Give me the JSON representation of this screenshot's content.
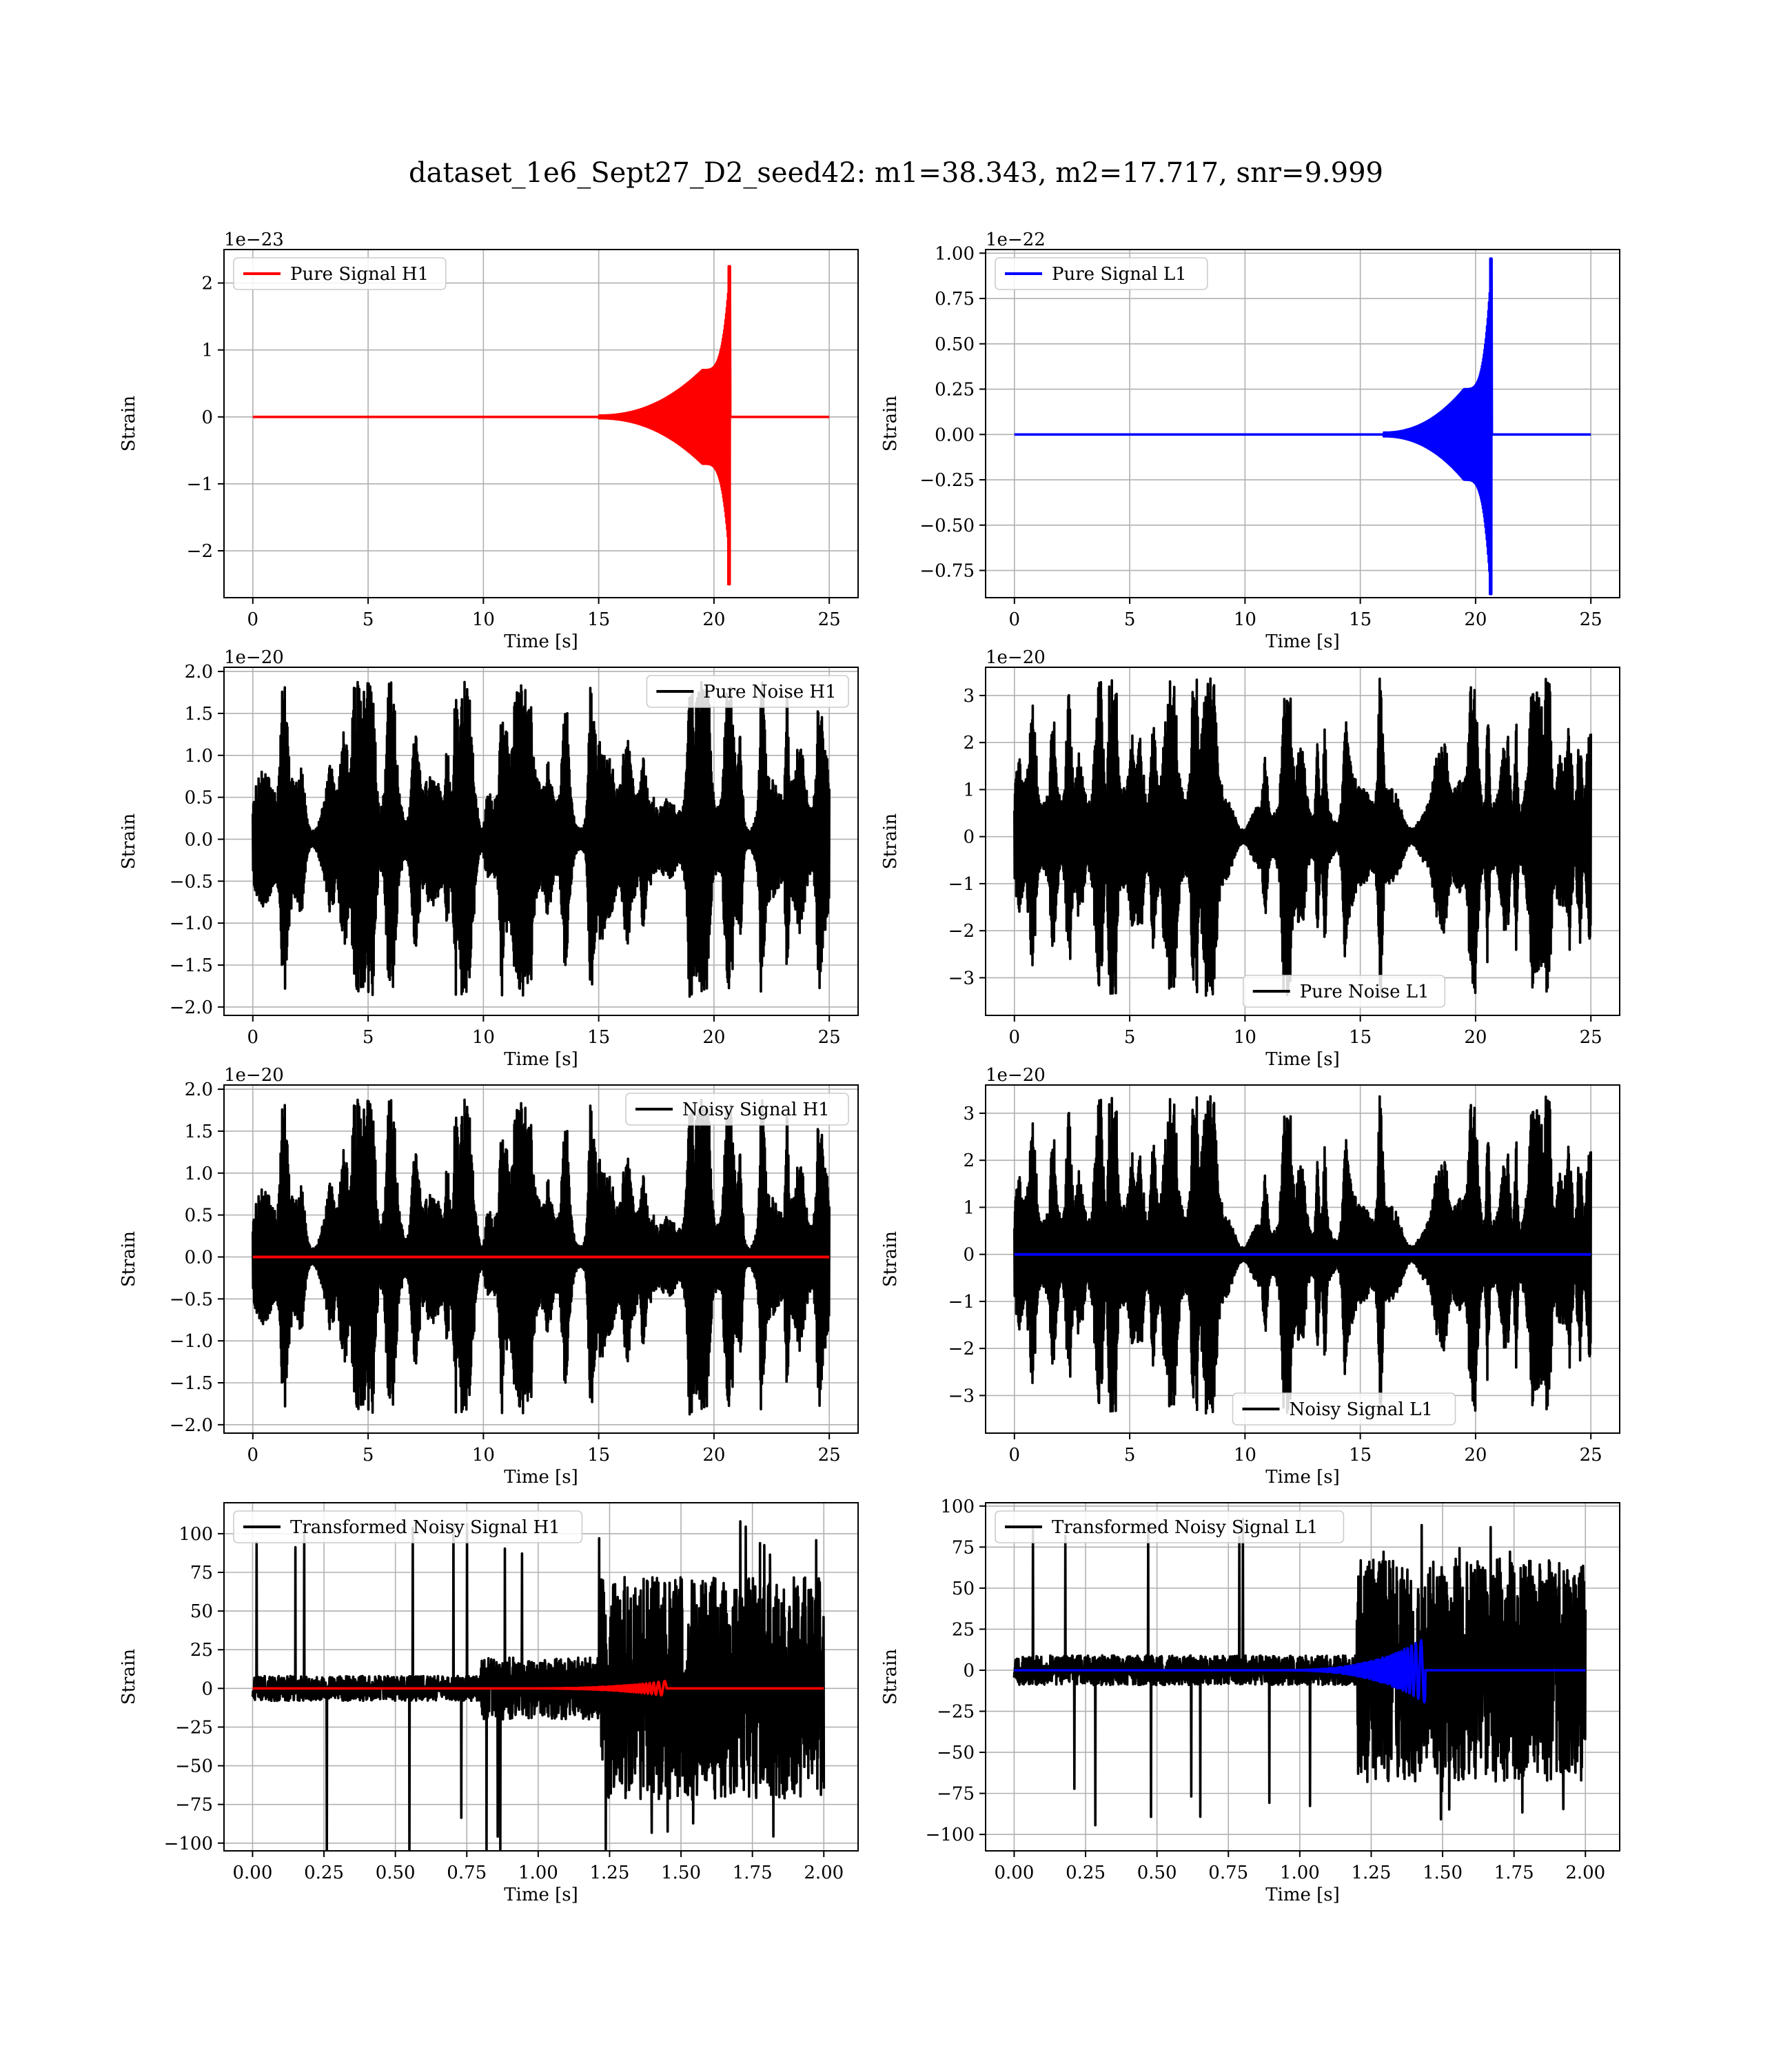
{
  "figure": {
    "title": "dataset_1e6_Sept27_D2_seed42: m1=38.343, m2=17.717, snr=9.999",
    "colors": {
      "h1_signal": "#ff0000",
      "l1_signal": "#0000ff",
      "noise": "#000000",
      "grid": "#b0b0b0",
      "axes": "#000000"
    }
  },
  "chart_data": [
    {
      "id": "pure-signal-h1",
      "type": "line",
      "title": "",
      "xlabel": "Time [s]",
      "ylabel": "Strain",
      "offset_text": "1e−23",
      "xlim": [
        -1.25,
        26.25
      ],
      "ylim": [
        -2.7,
        2.5
      ],
      "xticks": [
        0,
        5,
        10,
        15,
        20,
        25
      ],
      "xtick_labels": [
        "0",
        "5",
        "10",
        "15",
        "20",
        "25"
      ],
      "yticks": [
        -2,
        -1,
        0,
        1,
        2
      ],
      "ytick_labels": [
        "−2",
        "−1",
        "0",
        "1",
        "2"
      ],
      "grid": true,
      "legend": {
        "position": "upper-left",
        "entries": [
          {
            "label": "Pure Signal H1",
            "color": "#ff0000"
          }
        ]
      },
      "series": [
        {
          "name": "Pure Signal H1",
          "color": "#ff0000",
          "kind": "chirp",
          "t_start": 0,
          "t_end": 25,
          "t_merger": 20.7,
          "onset": 15,
          "amp_start": 0.02,
          "amp_mid": 0.7,
          "amp_pos": 2.25,
          "amp_neg": -2.5,
          "plateau_at": 19.5
        }
      ]
    },
    {
      "id": "pure-signal-l1",
      "type": "line",
      "title": "",
      "xlabel": "Time [s]",
      "ylabel": "Strain",
      "offset_text": "1e−22",
      "xlim": [
        -1.25,
        26.25
      ],
      "ylim": [
        -0.9,
        1.02
      ],
      "xticks": [
        0,
        5,
        10,
        15,
        20,
        25
      ],
      "xtick_labels": [
        "0",
        "5",
        "10",
        "15",
        "20",
        "25"
      ],
      "yticks": [
        -0.75,
        -0.5,
        -0.25,
        0,
        0.25,
        0.5,
        0.75,
        1.0
      ],
      "ytick_labels": [
        "−0.75",
        "−0.50",
        "−0.25",
        "0.00",
        "0.25",
        "0.50",
        "0.75",
        "1.00"
      ],
      "grid": true,
      "legend": {
        "position": "upper-left",
        "entries": [
          {
            "label": "Pure Signal L1",
            "color": "#0000ff"
          }
        ]
      },
      "series": [
        {
          "name": "Pure Signal L1",
          "color": "#0000ff",
          "kind": "chirp",
          "t_start": 0,
          "t_end": 25,
          "t_merger": 20.7,
          "onset": 16,
          "amp_start": 0.01,
          "amp_mid": 0.25,
          "amp_pos": 0.97,
          "amp_neg": -0.88,
          "plateau_at": 19.5
        }
      ]
    },
    {
      "id": "pure-noise-h1",
      "type": "line",
      "title": "",
      "xlabel": "Time [s]",
      "ylabel": "Strain",
      "offset_text": "1e−20",
      "xlim": [
        -1.25,
        26.25
      ],
      "ylim": [
        -2.1,
        2.05
      ],
      "xticks": [
        0,
        5,
        10,
        15,
        20,
        25
      ],
      "xtick_labels": [
        "0",
        "5",
        "10",
        "15",
        "20",
        "25"
      ],
      "yticks": [
        -2.0,
        -1.5,
        -1.0,
        -0.5,
        0,
        0.5,
        1.0,
        1.5,
        2.0
      ],
      "ytick_labels": [
        "−2.0",
        "−1.5",
        "−1.0",
        "−0.5",
        "0.0",
        "0.5",
        "1.0",
        "1.5",
        "2.0"
      ],
      "grid": true,
      "legend": {
        "position": "upper-right",
        "entries": [
          {
            "label": "Pure Noise H1",
            "color": "#000000"
          }
        ]
      },
      "series": [
        {
          "name": "Pure Noise H1",
          "color": "#000000",
          "kind": "noise",
          "t_start": 0,
          "t_end": 25,
          "base_amp": 0.9,
          "peak_amp": 1.88,
          "seed": 7
        }
      ]
    },
    {
      "id": "pure-noise-l1",
      "type": "line",
      "title": "",
      "xlabel": "Time [s]",
      "ylabel": "Strain",
      "offset_text": "1e−20",
      "xlim": [
        -1.25,
        26.25
      ],
      "ylim": [
        -3.8,
        3.6
      ],
      "xticks": [
        0,
        5,
        10,
        15,
        20,
        25
      ],
      "xtick_labels": [
        "0",
        "5",
        "10",
        "15",
        "20",
        "25"
      ],
      "yticks": [
        -3,
        -2,
        -1,
        0,
        1,
        2,
        3
      ],
      "ytick_labels": [
        "−3",
        "−2",
        "−1",
        "0",
        "1",
        "2",
        "3"
      ],
      "grid": true,
      "legend": {
        "position": "lower-center",
        "entries": [
          {
            "label": "Pure Noise L1",
            "color": "#000000"
          }
        ]
      },
      "series": [
        {
          "name": "Pure Noise L1",
          "color": "#000000",
          "kind": "noise",
          "t_start": 0,
          "t_end": 25,
          "base_amp": 1.2,
          "peak_amp": 3.4,
          "seed": 13
        }
      ]
    },
    {
      "id": "noisy-signal-h1",
      "type": "line",
      "title": "",
      "xlabel": "Time [s]",
      "ylabel": "Strain",
      "offset_text": "1e−20",
      "xlim": [
        -1.25,
        26.25
      ],
      "ylim": [
        -2.1,
        2.05
      ],
      "xticks": [
        0,
        5,
        10,
        15,
        20,
        25
      ],
      "xtick_labels": [
        "0",
        "5",
        "10",
        "15",
        "20",
        "25"
      ],
      "yticks": [
        -2.0,
        -1.5,
        -1.0,
        -0.5,
        0,
        0.5,
        1.0,
        1.5,
        2.0
      ],
      "ytick_labels": [
        "−2.0",
        "−1.5",
        "−1.0",
        "−0.5",
        "0.0",
        "0.5",
        "1.0",
        "1.5",
        "2.0"
      ],
      "grid": true,
      "legend": {
        "position": "upper-right",
        "entries": [
          {
            "label": "Noisy Signal H1",
            "color": "#000000"
          }
        ]
      },
      "series": [
        {
          "name": "Noisy Signal H1",
          "color": "#000000",
          "kind": "noise",
          "t_start": 0,
          "t_end": 25,
          "base_amp": 0.9,
          "peak_amp": 1.88,
          "seed": 7
        },
        {
          "name": "",
          "color": "#ff0000",
          "kind": "flat",
          "t_start": 0,
          "t_end": 25,
          "value": 0
        }
      ]
    },
    {
      "id": "noisy-signal-l1",
      "type": "line",
      "title": "",
      "xlabel": "Time [s]",
      "ylabel": "Strain",
      "offset_text": "1e−20",
      "xlim": [
        -1.25,
        26.25
      ],
      "ylim": [
        -3.8,
        3.6
      ],
      "xticks": [
        0,
        5,
        10,
        15,
        20,
        25
      ],
      "xtick_labels": [
        "0",
        "5",
        "10",
        "15",
        "20",
        "25"
      ],
      "yticks": [
        -3,
        -2,
        -1,
        0,
        1,
        2,
        3
      ],
      "ytick_labels": [
        "−3",
        "−2",
        "−1",
        "0",
        "1",
        "2",
        "3"
      ],
      "grid": true,
      "legend": {
        "position": "lower-center",
        "entries": [
          {
            "label": "Noisy Signal L1",
            "color": "#000000"
          }
        ]
      },
      "series": [
        {
          "name": "Noisy Signal L1",
          "color": "#000000",
          "kind": "noise",
          "t_start": 0,
          "t_end": 25,
          "base_amp": 1.2,
          "peak_amp": 3.4,
          "seed": 13
        },
        {
          "name": "",
          "color": "#0000ff",
          "kind": "flat",
          "t_start": 0,
          "t_end": 25,
          "value": 0
        }
      ]
    },
    {
      "id": "transformed-noisy-signal-h1",
      "type": "line",
      "title": "",
      "xlabel": "Time [s]",
      "ylabel": "Strain",
      "offset_text": "",
      "xlim": [
        -0.1,
        2.12
      ],
      "ylim": [
        -105,
        120
      ],
      "xticks": [
        0,
        0.25,
        0.5,
        0.75,
        1.0,
        1.25,
        1.5,
        1.75,
        2.0
      ],
      "xtick_labels": [
        "0.00",
        "0.25",
        "0.50",
        "0.75",
        "1.00",
        "1.25",
        "1.50",
        "1.75",
        "2.00"
      ],
      "yticks": [
        -100,
        -75,
        -50,
        -25,
        0,
        25,
        50,
        75,
        100
      ],
      "ytick_labels": [
        "−100",
        "−75",
        "−50",
        "−25",
        "0",
        "25",
        "50",
        "75",
        "100"
      ],
      "grid": true,
      "legend": {
        "position": "upper-left",
        "entries": [
          {
            "label": "Transformed Noisy Signal H1",
            "color": "#000000"
          }
        ]
      },
      "series": [
        {
          "name": "Transformed Noisy Signal H1",
          "color": "#000000",
          "kind": "whitened",
          "t_start": 0,
          "t_end": 2.0,
          "seed": 21,
          "segments": [
            [
              0,
              0.8,
              8
            ],
            [
              0.8,
              1.22,
              20
            ],
            [
              1.22,
              2.0,
              72
            ]
          ],
          "peak": 110
        },
        {
          "name": "",
          "color": "#ff0000",
          "kind": "whitened-chirp",
          "t_start": 0,
          "t_end": 2.0,
          "t_merger": 1.45,
          "amp_peak": 5
        }
      ]
    },
    {
      "id": "transformed-noisy-signal-l1",
      "type": "line",
      "title": "",
      "xlabel": "Time [s]",
      "ylabel": "Strain",
      "offset_text": "",
      "xlim": [
        -0.1,
        2.12
      ],
      "ylim": [
        -110,
        102
      ],
      "xticks": [
        0,
        0.25,
        0.5,
        0.75,
        1.0,
        1.25,
        1.5,
        1.75,
        2.0
      ],
      "xtick_labels": [
        "0.00",
        "0.25",
        "0.50",
        "0.75",
        "1.00",
        "1.25",
        "1.50",
        "1.75",
        "2.00"
      ],
      "yticks": [
        -100,
        -75,
        -50,
        -25,
        0,
        25,
        50,
        75,
        100
      ],
      "ytick_labels": [
        "−100",
        "−75",
        "−50",
        "−25",
        "0",
        "25",
        "50",
        "75",
        "100"
      ],
      "grid": true,
      "legend": {
        "position": "upper-left",
        "entries": [
          {
            "label": "Transformed Noisy Signal L1",
            "color": "#000000"
          }
        ]
      },
      "series": [
        {
          "name": "Transformed Noisy Signal L1",
          "color": "#000000",
          "kind": "whitened",
          "t_start": 0,
          "t_end": 2.0,
          "seed": 33,
          "segments": [
            [
              0,
              1.2,
              9
            ],
            [
              1.2,
              2.0,
              68
            ]
          ],
          "peak": 96
        },
        {
          "name": "",
          "color": "#0000ff",
          "kind": "whitened-chirp",
          "t_start": 0,
          "t_end": 2.0,
          "t_merger": 1.44,
          "amp_peak": 20
        }
      ]
    }
  ]
}
